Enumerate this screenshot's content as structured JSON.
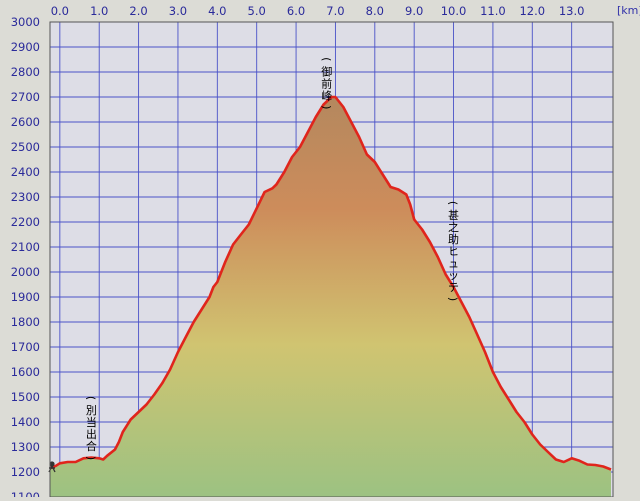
{
  "chart_data": {
    "type": "area",
    "title": "",
    "xlabel": "",
    "ylabel": "",
    "x_unit": "[km]",
    "xlim": [
      -0.25,
      14.05
    ],
    "ylim": [
      1100,
      3000
    ],
    "x_ticks": [
      0.0,
      1.0,
      2.0,
      3.0,
      4.0,
      5.0,
      6.0,
      7.0,
      8.0,
      9.0,
      10.0,
      11.0,
      12.0,
      13.0
    ],
    "x_tick_labels": [
      "0.0",
      "1.0",
      "2.0",
      "3.0",
      "4.0",
      "5.0",
      "6.0",
      "7.0",
      "8.0",
      "9.0",
      "10.0",
      "11.0",
      "12.0",
      "13.0"
    ],
    "y_ticks": [
      1100,
      1200,
      1300,
      1400,
      1500,
      1600,
      1700,
      1800,
      1900,
      2000,
      2100,
      2200,
      2300,
      2400,
      2500,
      2600,
      2700,
      2800,
      2900,
      3000
    ],
    "y_tick_labels": [
      "1100",
      "1200",
      "1300",
      "1400",
      "1500",
      "1600",
      "1700",
      "1800",
      "1900",
      "2000",
      "2100",
      "2200",
      "2300",
      "2400",
      "2500",
      "2600",
      "2700",
      "2800",
      "2900",
      "3000"
    ],
    "grid": true,
    "series": [
      {
        "x": [
          -0.25,
          -0.1,
          0.0,
          0.2,
          0.4,
          0.6,
          0.8,
          1.0,
          1.1,
          1.2,
          1.4,
          1.5,
          1.6,
          1.8,
          2.0,
          2.2,
          2.4,
          2.6,
          2.8,
          3.0,
          3.2,
          3.4,
          3.6,
          3.8,
          3.9,
          4.0,
          4.2,
          4.4,
          4.5,
          4.6,
          4.8,
          5.0,
          5.2,
          5.4,
          5.5,
          5.7,
          5.9,
          6.1,
          6.3,
          6.5,
          6.7,
          6.9,
          7.0,
          7.2,
          7.4,
          7.6,
          7.8,
          8.0,
          8.2,
          8.4,
          8.6,
          8.8,
          8.9,
          9.0,
          9.2,
          9.4,
          9.6,
          9.8,
          10.0,
          10.2,
          10.4,
          10.6,
          10.8,
          11.0,
          11.2,
          11.4,
          11.6,
          11.8,
          12.0,
          12.2,
          12.4,
          12.6,
          12.8,
          13.0,
          13.2,
          13.4,
          13.6,
          13.8,
          14.0
        ],
        "y": [
          1215,
          1225,
          1235,
          1240,
          1240,
          1255,
          1258,
          1255,
          1250,
          1265,
          1290,
          1320,
          1360,
          1410,
          1440,
          1470,
          1510,
          1555,
          1610,
          1680,
          1740,
          1800,
          1850,
          1900,
          1940,
          1960,
          2040,
          2110,
          2130,
          2150,
          2190,
          2255,
          2320,
          2335,
          2350,
          2400,
          2460,
          2500,
          2560,
          2620,
          2670,
          2700,
          2700,
          2660,
          2600,
          2540,
          2470,
          2440,
          2390,
          2340,
          2330,
          2310,
          2270,
          2210,
          2170,
          2120,
          2060,
          1990,
          1940,
          1880,
          1820,
          1750,
          1680,
          1600,
          1540,
          1490,
          1440,
          1400,
          1350,
          1310,
          1280,
          1250,
          1240,
          1255,
          1245,
          1230,
          1228,
          1222,
          1210
        ]
      }
    ],
    "fill_gradient": [
      "#9cc282",
      "#d0c471",
      "#cd8c5b",
      "#b4885e"
    ],
    "line_color": "#e0251c",
    "annotations": [
      {
        "label": "(別当出合)",
        "x": 0.8,
        "y": 1480
      },
      {
        "label": "(御前峰)",
        "x": 6.78,
        "y": 2835
      },
      {
        "label": "(甚之助ヒュッテ)",
        "x": 10.0,
        "y": 2260
      }
    ]
  }
}
